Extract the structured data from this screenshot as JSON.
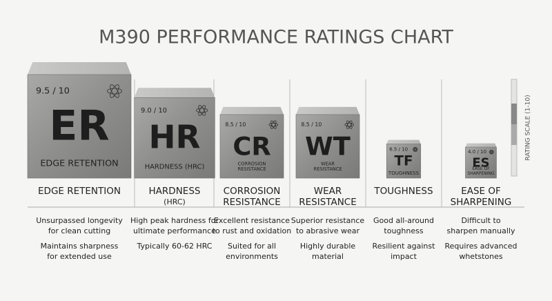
{
  "chart_data": {
    "type": "cube",
    "title": "M390 PERFORMANCE RATINGS CHART",
    "scale_label": "RATING SCALE (1-10)",
    "values": [
      9.5,
      9.0,
      8.5,
      8.5,
      6.5,
      4.0
    ],
    "value_labels": [
      "9.5 / 10",
      "9.0 / 10",
      "8.5 / 10",
      "8.5 / 10",
      "6.5 / 10",
      "4.0 / 10"
    ],
    "symbols": [
      "ER",
      "HR",
      "CR",
      "WT",
      "TF",
      "ES"
    ],
    "cube_captions": [
      [
        "EDGE RETENTION"
      ],
      [
        "HARDNESS (HRC)"
      ],
      [
        "CORROSION",
        "RESISTANCE"
      ],
      [
        "WEAR",
        "RESISTANCE"
      ],
      [
        "TOUGHNESS"
      ],
      [
        "EASE OF",
        "SHARPENING"
      ]
    ],
    "headers": [
      [
        "EDGE RETENTION"
      ],
      [
        "HARDNESS",
        "(HRC)"
      ],
      [
        "CORROSION",
        "RESISTANCE"
      ],
      [
        "WEAR",
        "RESISTANCE"
      ],
      [
        "TOUGHNESS"
      ],
      [
        "EASE OF",
        "SHARPENING"
      ]
    ],
    "descriptions": [
      [
        [
          "Unsurpassed longevity",
          "for clean cutting"
        ],
        [
          "Maintains sharpness",
          "for extended use"
        ]
      ],
      [
        [
          "High peak hardness for",
          "ultimate performance"
        ],
        [
          "Typically 60-62 HRC"
        ]
      ],
      [
        [
          "Excellent resistance",
          "to rust and oxidation"
        ],
        [
          "Suited for all",
          "environments"
        ]
      ],
      [
        [
          "Superior resistance",
          "to abrasive wear"
        ],
        [
          "Highly durable",
          "material"
        ]
      ],
      [
        [
          "Good all-around",
          "toughness"
        ],
        [
          "Resilient against",
          "impact"
        ]
      ],
      [
        [
          "Difficult to",
          "sharpen manually"
        ],
        [
          "Requires advanced",
          "whetstones"
        ]
      ]
    ]
  }
}
